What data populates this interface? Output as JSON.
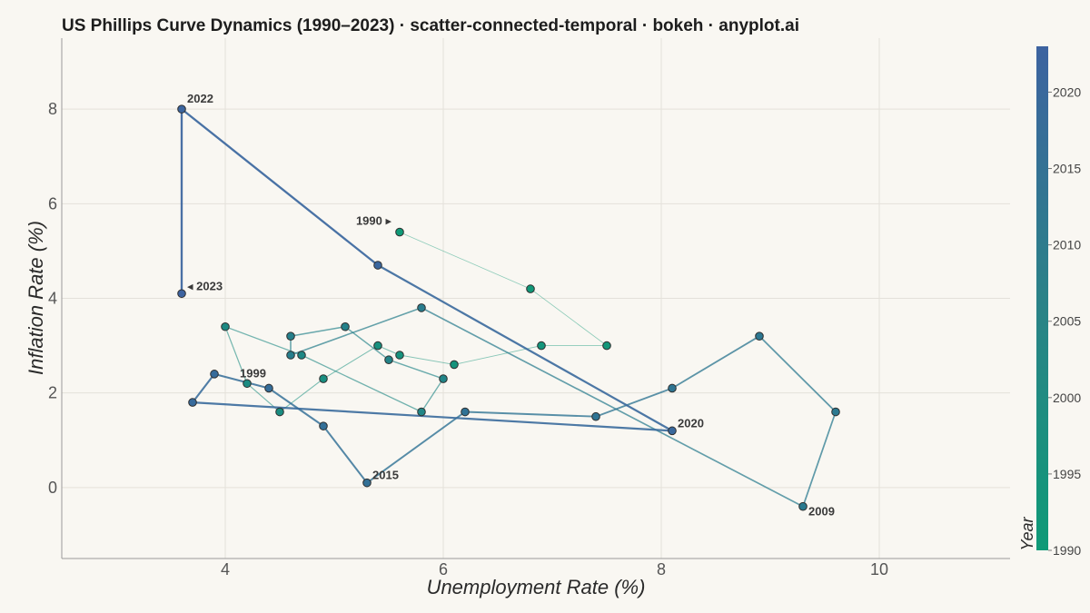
{
  "title": "US Phillips Curve Dynamics (1990–2023) · scatter-connected-temporal · bokeh · anyplot.ai",
  "chart_data": {
    "type": "scatter",
    "connected": true,
    "title": "US Phillips Curve Dynamics (1990–2023) · scatter-connected-temporal · bokeh · anyplot.ai",
    "xlabel": "Unemployment Rate (%)",
    "ylabel": "Inflation Rate (%)",
    "xlim": [
      2.5,
      11.2
    ],
    "ylim": [
      -1.5,
      9.5
    ],
    "xticks": [
      4,
      6,
      8,
      10
    ],
    "yticks": [
      0,
      2,
      4,
      6,
      8
    ],
    "grid": true,
    "colorbar": {
      "title": "Year",
      "range": [
        1990,
        2023
      ],
      "ticks": [
        1990,
        1995,
        2000,
        2005,
        2010,
        2015,
        2020
      ],
      "color_low": "#0f9a77",
      "color_high": "#3d63a0"
    },
    "points": [
      {
        "year": 1990,
        "unemployment": 5.6,
        "inflation": 5.4
      },
      {
        "year": 1991,
        "unemployment": 6.8,
        "inflation": 4.2
      },
      {
        "year": 1992,
        "unemployment": 7.5,
        "inflation": 3.0
      },
      {
        "year": 1993,
        "unemployment": 6.9,
        "inflation": 3.0
      },
      {
        "year": 1994,
        "unemployment": 6.1,
        "inflation": 2.6
      },
      {
        "year": 1995,
        "unemployment": 5.6,
        "inflation": 2.8
      },
      {
        "year": 1996,
        "unemployment": 5.4,
        "inflation": 3.0
      },
      {
        "year": 1997,
        "unemployment": 4.9,
        "inflation": 2.3
      },
      {
        "year": 1998,
        "unemployment": 4.5,
        "inflation": 1.6
      },
      {
        "year": 1999,
        "unemployment": 4.2,
        "inflation": 2.2
      },
      {
        "year": 2000,
        "unemployment": 4.0,
        "inflation": 3.4
      },
      {
        "year": 2001,
        "unemployment": 4.7,
        "inflation": 2.8
      },
      {
        "year": 2002,
        "unemployment": 5.8,
        "inflation": 1.6
      },
      {
        "year": 2003,
        "unemployment": 6.0,
        "inflation": 2.3
      },
      {
        "year": 2004,
        "unemployment": 5.5,
        "inflation": 2.7
      },
      {
        "year": 2005,
        "unemployment": 5.1,
        "inflation": 3.4
      },
      {
        "year": 2006,
        "unemployment": 4.6,
        "inflation": 3.2
      },
      {
        "year": 2007,
        "unemployment": 4.6,
        "inflation": 2.8
      },
      {
        "year": 2008,
        "unemployment": 5.8,
        "inflation": 3.8
      },
      {
        "year": 2009,
        "unemployment": 9.3,
        "inflation": -0.4
      },
      {
        "year": 2010,
        "unemployment": 9.6,
        "inflation": 1.6
      },
      {
        "year": 2011,
        "unemployment": 8.9,
        "inflation": 3.2
      },
      {
        "year": 2012,
        "unemployment": 8.1,
        "inflation": 2.1
      },
      {
        "year": 2013,
        "unemployment": 7.4,
        "inflation": 1.5
      },
      {
        "year": 2014,
        "unemployment": 6.2,
        "inflation": 1.6
      },
      {
        "year": 2015,
        "unemployment": 5.3,
        "inflation": 0.1
      },
      {
        "year": 2016,
        "unemployment": 4.9,
        "inflation": 1.3
      },
      {
        "year": 2017,
        "unemployment": 4.4,
        "inflation": 2.1
      },
      {
        "year": 2018,
        "unemployment": 3.9,
        "inflation": 2.4
      },
      {
        "year": 2019,
        "unemployment": 3.7,
        "inflation": 1.8
      },
      {
        "year": 2020,
        "unemployment": 8.1,
        "inflation": 1.2
      },
      {
        "year": 2021,
        "unemployment": 5.4,
        "inflation": 4.7
      },
      {
        "year": 2022,
        "unemployment": 3.6,
        "inflation": 8.0
      },
      {
        "year": 2023,
        "unemployment": 3.6,
        "inflation": 4.1
      }
    ],
    "annotations": [
      {
        "year": 1990,
        "text": "1990 ▸",
        "anchor": "left"
      },
      {
        "year": 1999,
        "text": "1999",
        "anchor": "above"
      },
      {
        "year": 2009,
        "text": "2009",
        "anchor": "below-right"
      },
      {
        "year": 2015,
        "text": "2015",
        "anchor": "right"
      },
      {
        "year": 2020,
        "text": "2020",
        "anchor": "right"
      },
      {
        "year": 2022,
        "text": "2022",
        "anchor": "above-right"
      },
      {
        "year": 2023,
        "text": "◂ 2023",
        "anchor": "right"
      }
    ]
  }
}
